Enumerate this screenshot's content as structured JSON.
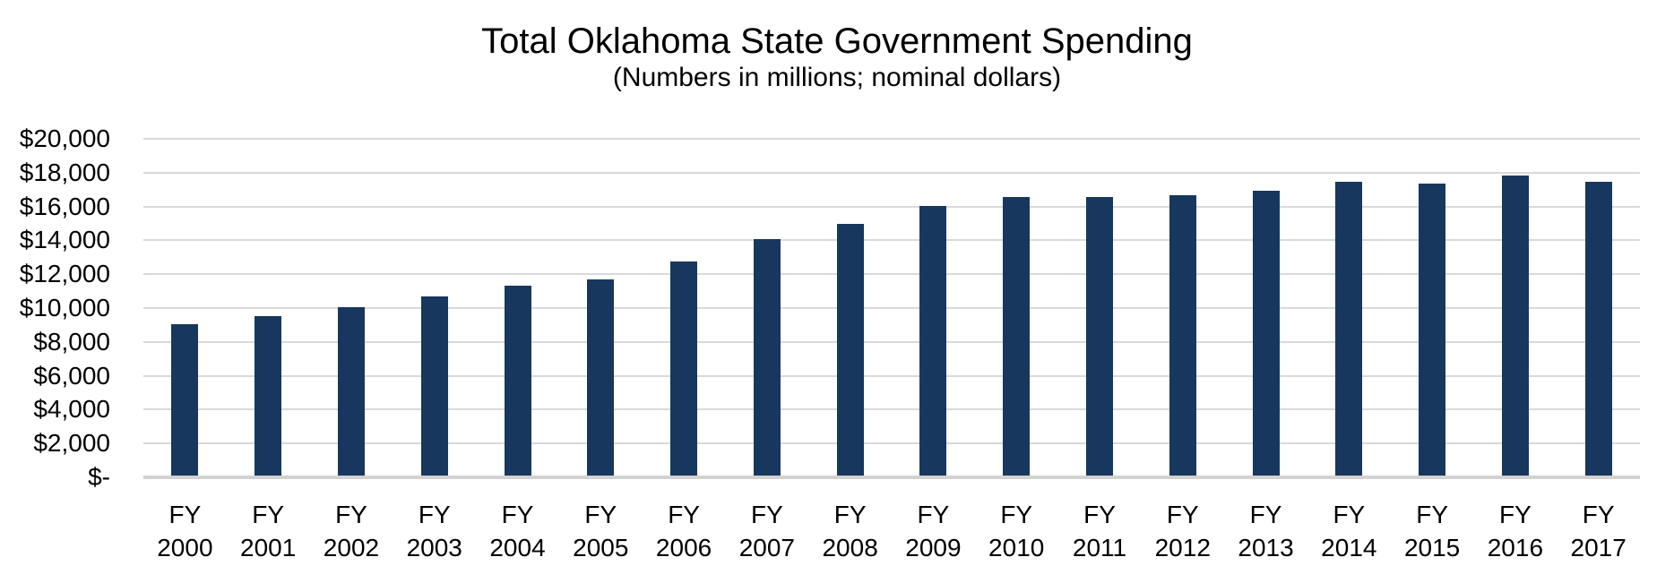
{
  "chart_data": {
    "type": "bar",
    "title": "Total Oklahoma State Government Spending",
    "subtitle": "(Numbers in millions; nominal dollars)",
    "category_prefix": "FY",
    "categories": [
      "2000",
      "2001",
      "2002",
      "2003",
      "2004",
      "2005",
      "2006",
      "2007",
      "2008",
      "2009",
      "2010",
      "2011",
      "2012",
      "2013",
      "2014",
      "2015",
      "2016",
      "2017"
    ],
    "values": [
      9050,
      9500,
      10050,
      10700,
      11300,
      11700,
      12750,
      14050,
      14950,
      16050,
      16550,
      16550,
      16650,
      16950,
      17450,
      17350,
      17850,
      17450
    ],
    "xlabel": "",
    "ylabel": "",
    "ylim": [
      0,
      20000
    ],
    "y_tick_step": 2000,
    "y_tick_labels": [
      "$-",
      "$2,000",
      "$4,000",
      "$6,000",
      "$8,000",
      "$10,000",
      "$12,000",
      "$14,000",
      "$16,000",
      "$18,000",
      "$20,000"
    ],
    "grid": true,
    "legend_position": "none",
    "bar_color": "#17375E",
    "gridline_color": "#D9D9D9",
    "baseline_color": "#D2D2D2",
    "text_color": "#000000"
  }
}
